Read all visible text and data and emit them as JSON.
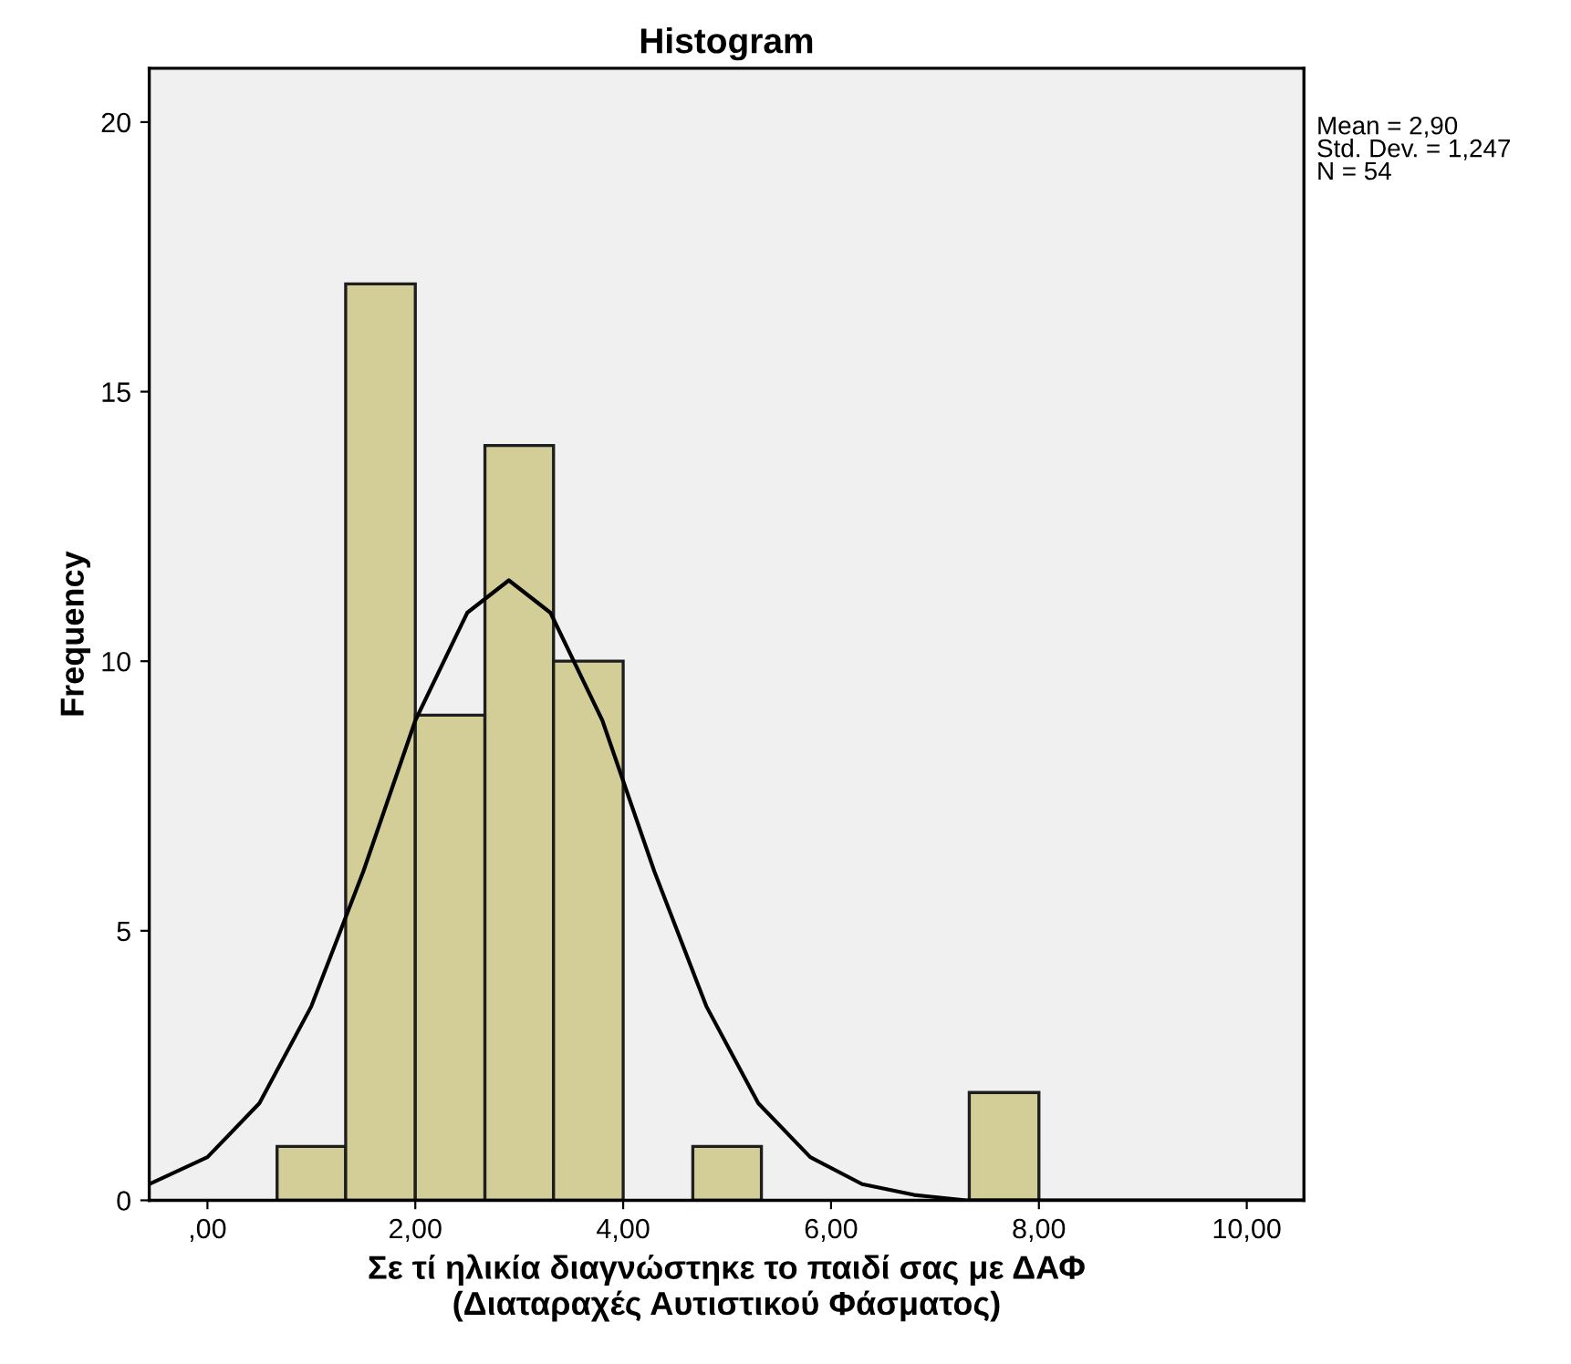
{
  "chart_data": {
    "type": "histogram",
    "title": "Histogram",
    "xlabel": "Σε τί ηλικία διαγνώστηκε το παιδί σας με ΔΑΦ\n(Διαταραχές Αυτιστικού Φάσματος)",
    "ylabel": "Frequency",
    "bins": [
      0.67,
      1.33,
      2.0,
      2.67,
      3.33,
      4.0,
      4.67,
      5.33,
      7.33,
      8.0
    ],
    "values": [
      1,
      17,
      9,
      14,
      10,
      0,
      1,
      0,
      2
    ],
    "color": "#d3ce97",
    "series": [
      {
        "type": "line",
        "color": "#000000",
        "x": [
          -0.56,
          0,
          0.5,
          1.0,
          1.5,
          2.0,
          2.5,
          2.9,
          3.3,
          3.8,
          4.3,
          4.8,
          5.3,
          5.8,
          6.3,
          6.8,
          7.3,
          8.0,
          10.55
        ],
        "values": [
          0.3,
          0.8,
          1.8,
          3.6,
          6.1,
          8.9,
          10.9,
          11.5,
          10.9,
          8.9,
          6.1,
          3.6,
          1.8,
          0.8,
          0.3,
          0.1,
          0,
          0,
          0
        ]
      }
    ],
    "annotations": [
      "Mean = 2,90\nStd. Dev. = 1,247\nN = 54"
    ],
    "xlim": [
      -0.56,
      10.55
    ],
    "ylim": [
      0,
      21
    ],
    "xticks": [
      {
        "value": 0,
        "label": ",00"
      },
      {
        "value": 2,
        "label": "2,00"
      },
      {
        "value": 4,
        "label": "4,00"
      },
      {
        "value": 6,
        "label": "6,00"
      },
      {
        "value": 8,
        "label": "8,00"
      },
      {
        "value": 10,
        "label": "10,00"
      }
    ],
    "yticks": [
      0,
      5,
      10,
      15,
      20
    ],
    "grid": false,
    "legend": false
  }
}
